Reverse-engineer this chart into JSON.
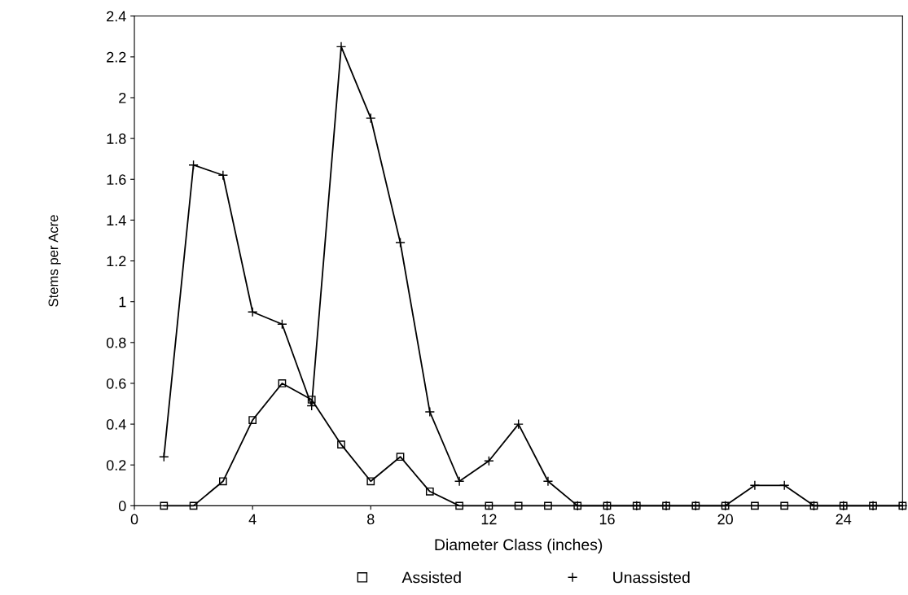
{
  "chart_data": {
    "type": "line",
    "xlabel": "Diameter Class (inches)",
    "ylabel": "Stems per Acre",
    "x": [
      1,
      2,
      3,
      4,
      5,
      6,
      7,
      8,
      9,
      10,
      11,
      12,
      13,
      14,
      15,
      16,
      17,
      18,
      19,
      20,
      21,
      22,
      23,
      24,
      25,
      26
    ],
    "series": [
      {
        "name": "Assisted",
        "color": "#000000",
        "marker": "square",
        "values": [
          0,
          0,
          0.12,
          0.42,
          0.6,
          0.52,
          0.3,
          0.12,
          0.24,
          0.07,
          0,
          0,
          0,
          0,
          0,
          0,
          0,
          0,
          0,
          0,
          0,
          0,
          0,
          0,
          0,
          0
        ]
      },
      {
        "name": "Unassisted",
        "color": "#000000",
        "marker": "cross",
        "values": [
          0.24,
          1.67,
          1.62,
          0.95,
          0.89,
          0.49,
          2.25,
          1.9,
          1.29,
          0.46,
          0.12,
          0.22,
          0.4,
          0.12,
          0,
          0,
          0,
          0,
          0,
          0,
          0.1,
          0.1,
          0,
          0,
          0,
          0
        ]
      }
    ],
    "xlim": [
      0,
      26
    ],
    "xticks": [
      0,
      4,
      8,
      12,
      16,
      20,
      24
    ],
    "ylim": [
      0,
      2.4
    ],
    "yticks": [
      0,
      0.2,
      0.4,
      0.6,
      0.8,
      1,
      1.2,
      1.4,
      1.6,
      1.8,
      2,
      2.2,
      2.4
    ],
    "grid": false,
    "legend": "bottom",
    "line_style": "solid"
  }
}
